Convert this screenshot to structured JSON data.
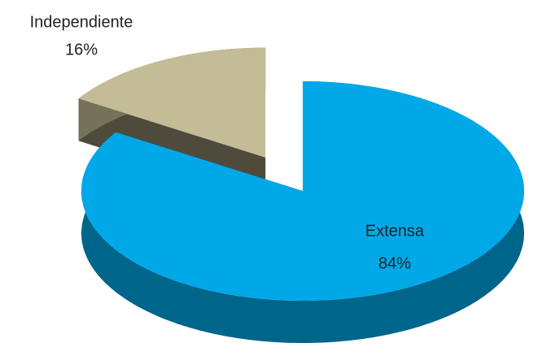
{
  "chart_data": {
    "type": "pie",
    "categories": [
      "Extensa",
      "Independiente"
    ],
    "values": [
      84,
      16
    ],
    "value_labels": [
      "84%",
      "16%"
    ],
    "colors": [
      "#00a8e8",
      "#c4bc96"
    ]
  }
}
